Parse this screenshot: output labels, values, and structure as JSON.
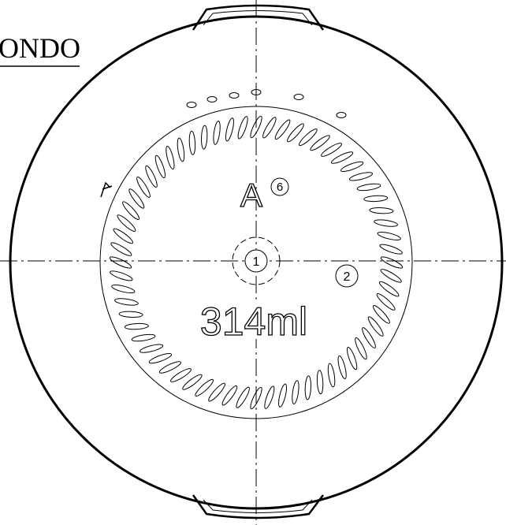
{
  "label": {
    "text": "ONDO"
  },
  "markings": {
    "letter": "A",
    "cavity": "6",
    "callouts": [
      "1",
      "2"
    ],
    "volume": "314ml"
  }
}
